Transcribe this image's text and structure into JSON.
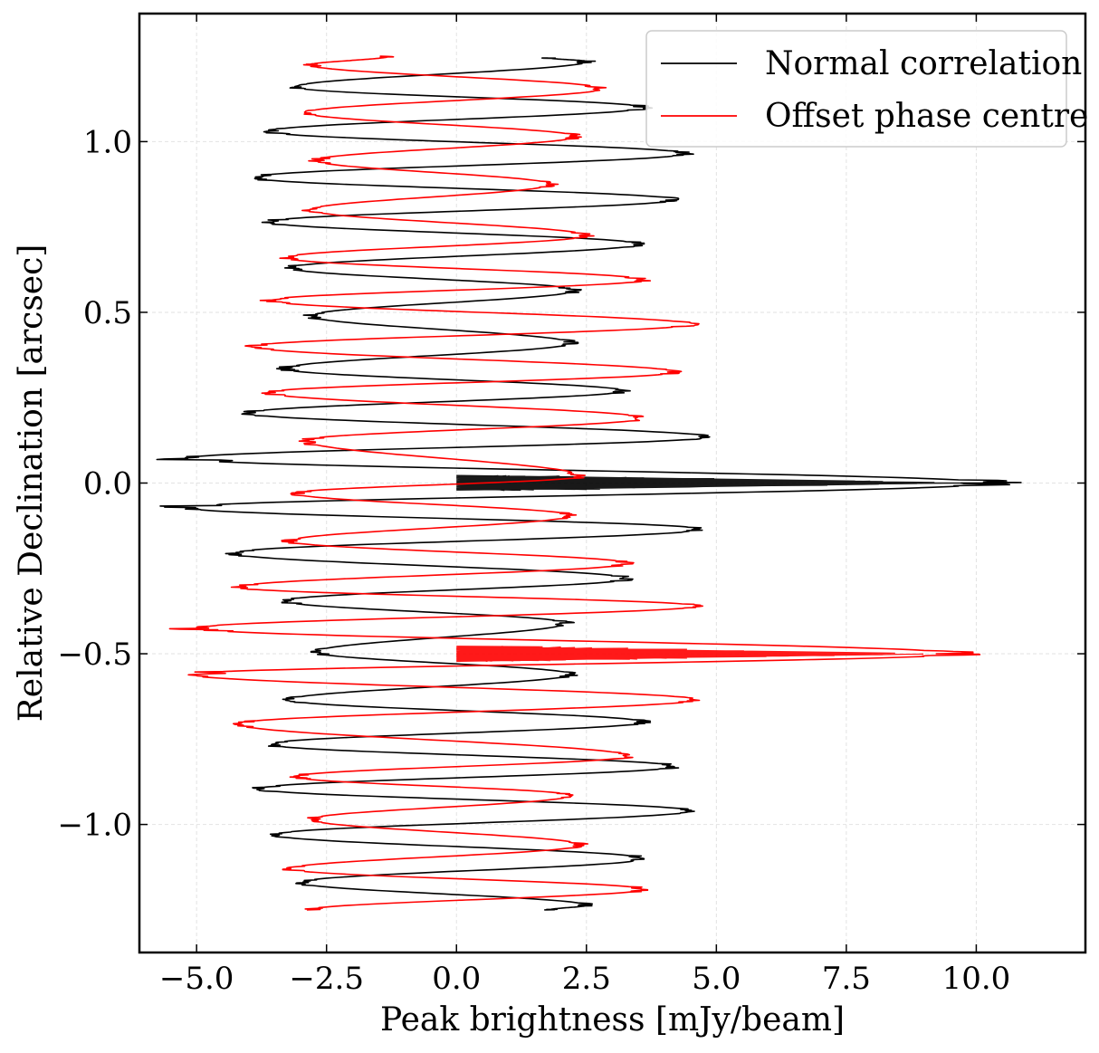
{
  "chart_data": {
    "type": "line",
    "title": "",
    "xlabel": "Peak brightness [mJy/beam]",
    "ylabel": "Relative Declination [arcsec]",
    "xlim": [
      -6.1,
      12.1
    ],
    "ylim": [
      -1.375,
      1.375
    ],
    "grid": true,
    "legend_position": "top-right",
    "x_ticks": [
      -5.0,
      -2.5,
      0.0,
      2.5,
      5.0,
      7.5,
      10.0
    ],
    "x_tick_labels": [
      "−5.0",
      "−2.5",
      "0.0",
      "2.5",
      "5.0",
      "7.5",
      "10.0"
    ],
    "y_ticks": [
      -1.0,
      -0.5,
      0.0,
      0.5,
      1.0
    ],
    "y_tick_labels": [
      "−1.0",
      "−0.5",
      "0.0",
      "0.5",
      "1.0"
    ],
    "series": [
      {
        "name": "Normal correlation",
        "color": "#000000",
        "dec_range": [
          -1.25,
          1.25
        ],
        "points": [
          [
            1.8,
            -1.25
          ],
          [
            2.5,
            -1.237
          ],
          [
            -3.0,
            -1.17
          ],
          [
            3.6,
            -1.1
          ],
          [
            -3.5,
            -1.03
          ],
          [
            4.5,
            -0.96
          ],
          [
            -3.8,
            -0.895
          ],
          [
            4.2,
            -0.83
          ],
          [
            -3.6,
            -0.765
          ],
          [
            3.6,
            -0.7
          ],
          [
            -3.2,
            -0.635
          ],
          [
            2.2,
            -0.56
          ],
          [
            -2.7,
            -0.495
          ],
          [
            2.1,
            -0.41
          ],
          [
            -3.3,
            -0.345
          ],
          [
            3.3,
            -0.28
          ],
          [
            -4.3,
            -0.205
          ],
          [
            4.7,
            -0.135
          ],
          [
            -5.2,
            -0.072
          ],
          [
            10.3,
            0.0
          ],
          [
            -5.2,
            0.072
          ],
          [
            4.8,
            0.135
          ],
          [
            -4.0,
            0.205
          ],
          [
            3.2,
            0.27
          ],
          [
            -3.3,
            0.335
          ],
          [
            2.2,
            0.41
          ],
          [
            -2.8,
            0.49
          ],
          [
            2.3,
            0.565
          ],
          [
            -3.2,
            0.63
          ],
          [
            3.5,
            0.7
          ],
          [
            -3.6,
            0.765
          ],
          [
            4.2,
            0.83
          ],
          [
            -3.9,
            0.895
          ],
          [
            4.4,
            0.965
          ],
          [
            -3.6,
            1.03
          ],
          [
            3.6,
            1.1
          ],
          [
            -3.1,
            1.16
          ],
          [
            2.5,
            1.235
          ],
          [
            1.8,
            1.245
          ]
        ]
      },
      {
        "name": "Offset phase centre",
        "color": "#ff0000",
        "dec_range": [
          -1.25,
          1.25
        ],
        "points": [
          [
            -2.8,
            -1.25
          ],
          [
            3.6,
            -1.19
          ],
          [
            -3.2,
            -1.13
          ],
          [
            2.4,
            -1.06
          ],
          [
            -2.8,
            -0.985
          ],
          [
            2.2,
            -0.915
          ],
          [
            -3.1,
            -0.86
          ],
          [
            3.3,
            -0.8
          ],
          [
            -4.2,
            -0.705
          ],
          [
            4.6,
            -0.635
          ],
          [
            -5.1,
            -0.56
          ],
          [
            9.6,
            -0.5
          ],
          [
            -5.0,
            -0.425
          ],
          [
            4.6,
            -0.36
          ],
          [
            -4.2,
            -0.305
          ],
          [
            3.3,
            -0.235
          ],
          [
            -3.2,
            -0.17
          ],
          [
            2.2,
            -0.095
          ],
          [
            -3.1,
            -0.03
          ],
          [
            2.4,
            0.02
          ],
          [
            -2.9,
            0.125
          ],
          [
            3.6,
            0.19
          ],
          [
            -3.6,
            0.265
          ],
          [
            4.2,
            0.325
          ],
          [
            -3.9,
            0.4
          ],
          [
            4.5,
            0.465
          ],
          [
            -3.6,
            0.535
          ],
          [
            3.6,
            0.595
          ],
          [
            -3.3,
            0.66
          ],
          [
            2.5,
            0.725
          ],
          [
            -2.8,
            0.8
          ],
          [
            1.8,
            0.875
          ],
          [
            -2.7,
            0.945
          ],
          [
            2.3,
            1.015
          ],
          [
            -2.9,
            1.085
          ],
          [
            2.8,
            1.155
          ],
          [
            -2.8,
            1.225
          ],
          [
            -1.3,
            1.25
          ]
        ]
      }
    ]
  }
}
